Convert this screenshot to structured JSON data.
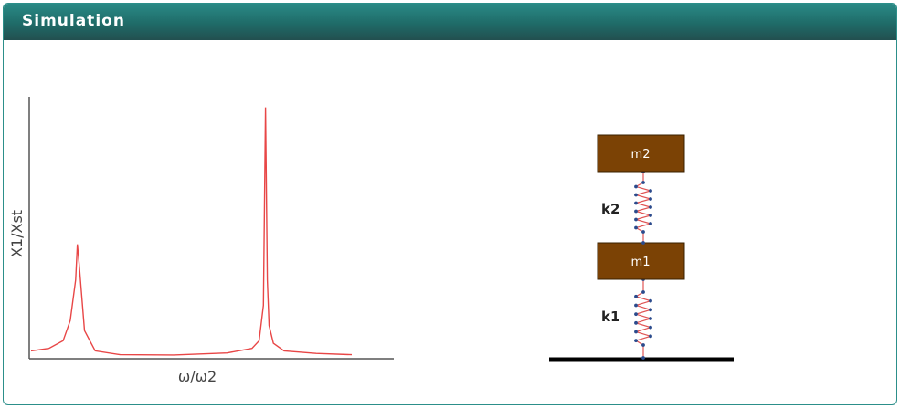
{
  "header": {
    "title": "Simulation"
  },
  "plot": {
    "x_label": "ω/ω2",
    "y_label": "X1/Xst",
    "curve_color": "#e84646",
    "axis_color": "#555555"
  },
  "chart_data": {
    "type": "line",
    "xlabel": "ω/ω2",
    "ylabel": "X1/Xst",
    "series": [
      {
        "x": [
          0.0,
          0.05,
          0.09,
          0.11,
          0.125,
          0.13,
          0.135,
          0.15,
          0.18,
          0.25,
          0.4,
          0.55,
          0.62,
          0.64,
          0.652,
          0.658,
          0.663,
          0.668,
          0.68,
          0.71,
          0.8,
          0.9
        ],
        "y": [
          0.02,
          0.03,
          0.06,
          0.14,
          0.3,
          0.44,
          0.36,
          0.1,
          0.02,
          0.005,
          0.004,
          0.012,
          0.03,
          0.06,
          0.2,
          0.98,
          0.3,
          0.12,
          0.05,
          0.02,
          0.01,
          0.005
        ]
      }
    ],
    "xlim": [
      0,
      1
    ],
    "ylim": [
      0,
      1
    ]
  },
  "schematic": {
    "mass_top": "m2",
    "mass_bottom": "m1",
    "spring_top": "k2",
    "spring_bottom": "k1",
    "mass_color": "#7b4205",
    "spring_color": "#e05555",
    "node_color": "#2a4b8d",
    "ground_color": "#000000"
  }
}
